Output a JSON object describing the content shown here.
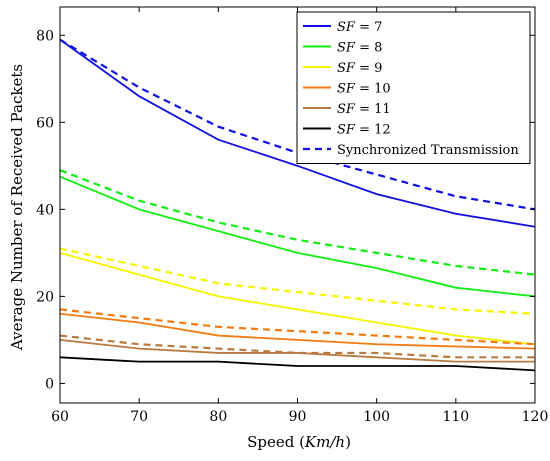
{
  "chart_data": {
    "type": "line",
    "xlabel_prefix": "Speed (",
    "xlabel_var": "Km/h",
    "xlabel_suffix": ")",
    "ylabel": "Average Number of Received Packets",
    "xlim": [
      60,
      120
    ],
    "ylim": [
      -4.5,
      86.5
    ],
    "x_ticks": [
      60,
      70,
      80,
      90,
      100,
      110,
      120
    ],
    "y_ticks": [
      0,
      20,
      40,
      60,
      80
    ],
    "x": [
      60,
      70,
      80,
      90,
      100,
      110,
      120
    ],
    "grid": false,
    "legend_position": "top-right",
    "series": [
      {
        "sf_var": "SF",
        "sf_value": "= 7",
        "color": "#1010e0",
        "solid": [
          79,
          66,
          56,
          50,
          43.5,
          39,
          36
        ],
        "dashed": [
          79,
          68,
          59,
          53,
          48,
          43,
          40
        ]
      },
      {
        "sf_var": "SF",
        "sf_value": "= 8",
        "color": "#11ee11",
        "solid": [
          47.5,
          40,
          35,
          30,
          26.5,
          22,
          20
        ],
        "dashed": [
          49,
          42,
          37,
          33,
          30,
          27,
          25
        ]
      },
      {
        "sf_var": "SF",
        "sf_value": "= 9",
        "color": "#f5f500",
        "solid": [
          30,
          25,
          20,
          17,
          14,
          11,
          9
        ],
        "dashed": [
          31,
          27,
          23,
          21,
          19,
          17,
          16
        ]
      },
      {
        "sf_var": "SF",
        "sf_value": "= 10",
        "color": "#f27a10",
        "solid": [
          16,
          14,
          11,
          10,
          9,
          8.5,
          8
        ],
        "dashed": [
          17,
          15,
          13,
          12,
          11,
          10,
          9
        ]
      },
      {
        "sf_var": "SF",
        "sf_value": "= 11",
        "color": "#b87a40",
        "solid": [
          10,
          8,
          7,
          7,
          6,
          5,
          5
        ],
        "dashed": [
          11,
          9,
          8,
          7,
          7,
          6,
          6
        ]
      },
      {
        "sf_var": "SF",
        "sf_value": "= 12",
        "color": "#000000",
        "solid": [
          6,
          5,
          5,
          4,
          4,
          4,
          3
        ],
        "dashed": null
      }
    ],
    "sync_legend": {
      "label": "Synchronized Transmission",
      "color": "#1010e0"
    }
  }
}
